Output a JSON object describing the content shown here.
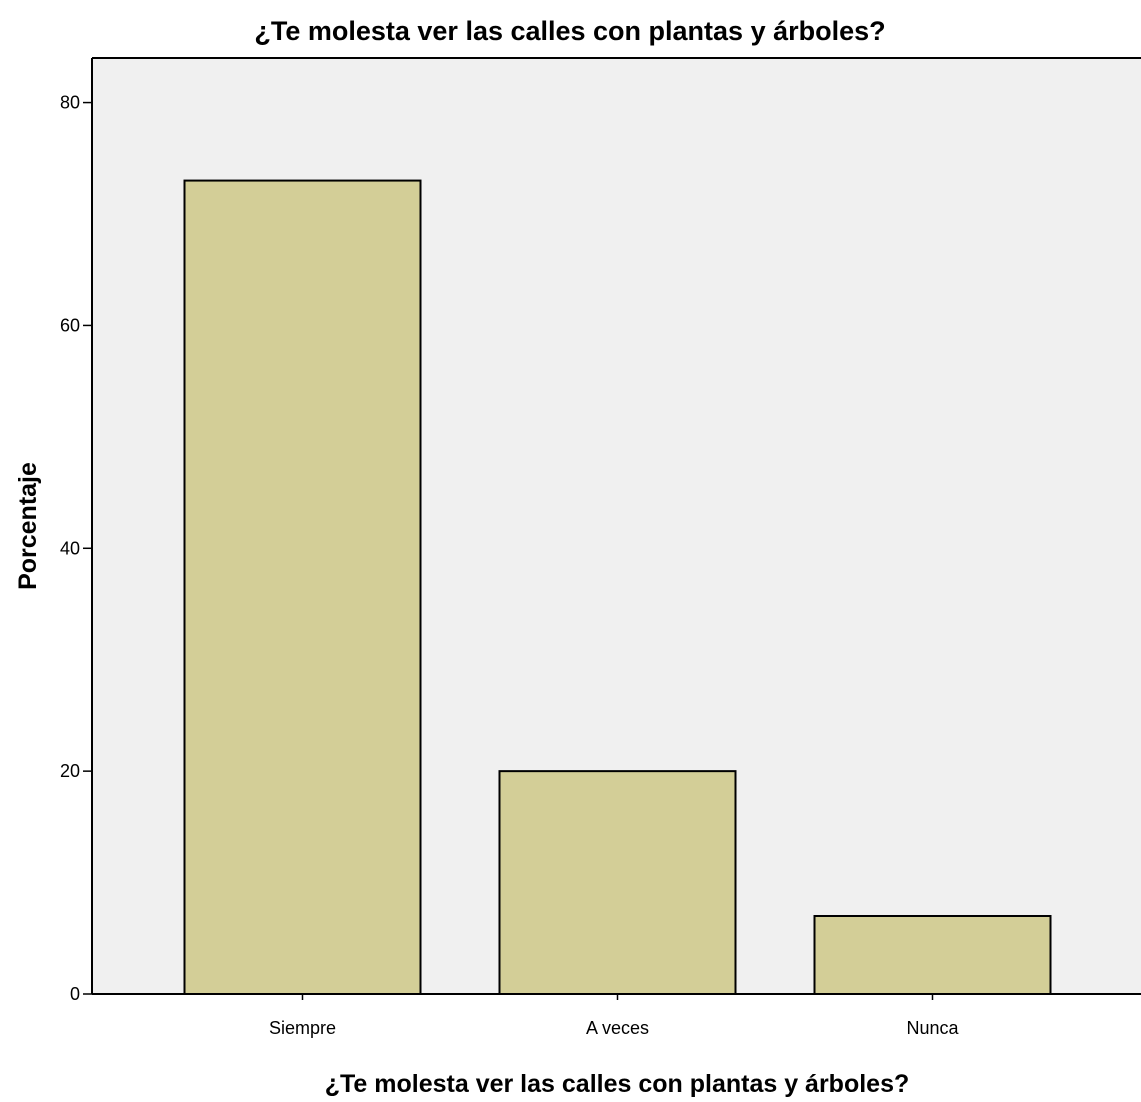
{
  "chart_data": {
    "type": "bar",
    "title": "¿Te molesta ver las calles con plantas y árboles?",
    "xlabel": "¿Te molesta ver las calles con plantas y árboles?",
    "ylabel": "Porcentaje",
    "categories": [
      "Siempre",
      "A veces",
      "Nunca"
    ],
    "values": [
      73,
      20,
      7
    ],
    "ylim": [
      0,
      84
    ],
    "yticks": [
      0,
      20,
      40,
      60,
      80
    ],
    "grid": false,
    "legend": "none",
    "colors": {
      "bar_fill": "#d3ce97",
      "bar_stroke": "#000000",
      "plot_background": "#f0f0f0",
      "axis": "#000000"
    }
  }
}
